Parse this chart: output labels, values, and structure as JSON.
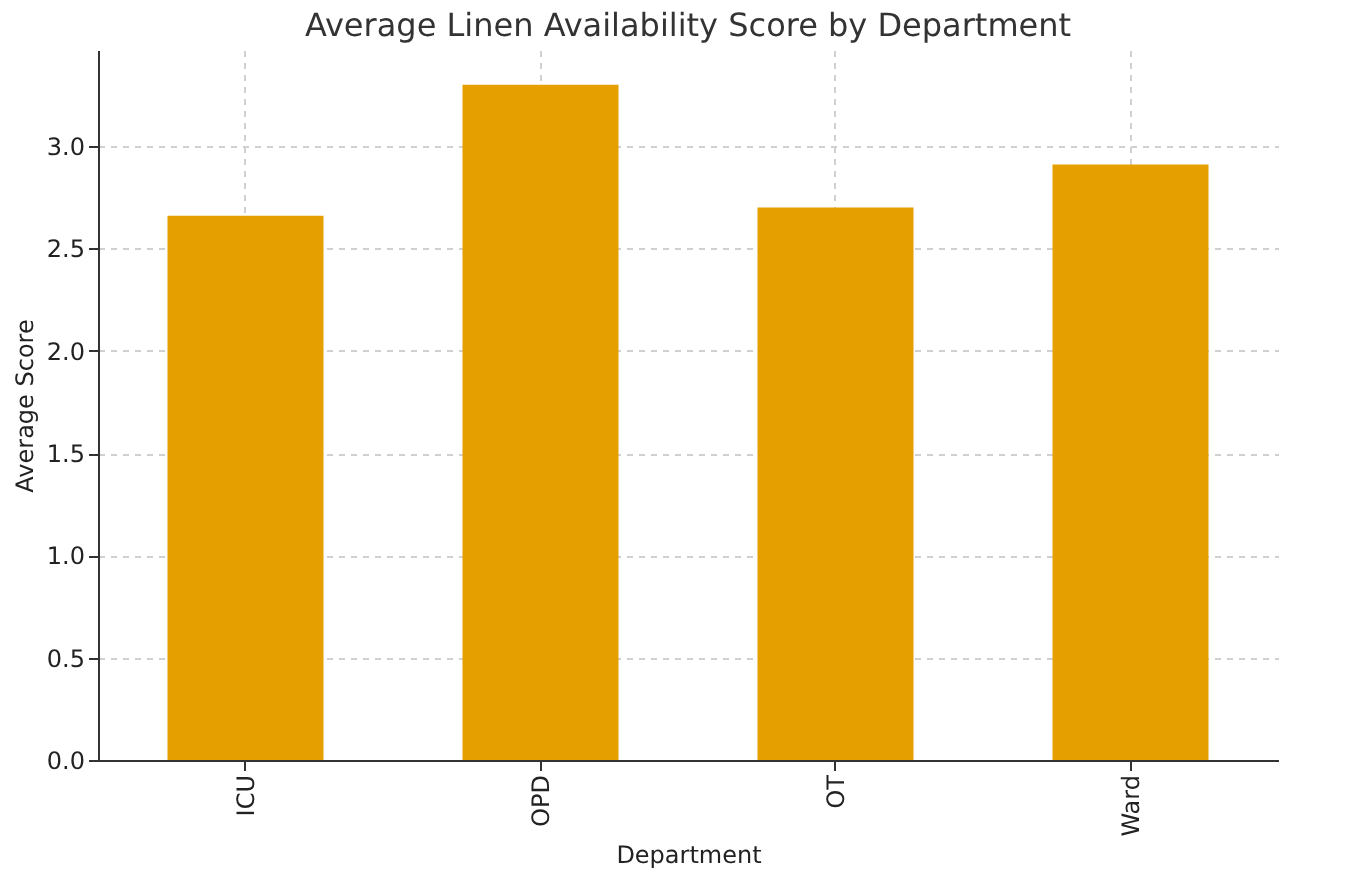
{
  "chart_data": {
    "type": "bar",
    "title": "Average Linen Availability Score by Department",
    "xlabel": "Department",
    "ylabel": "Average Score",
    "categories": [
      "ICU",
      "OPD",
      "OT",
      "Ward"
    ],
    "values": [
      2.66,
      3.3,
      2.7,
      2.91
    ],
    "color": "#e5a000",
    "ylim": [
      0,
      3.47
    ],
    "yticks": [
      {
        "value": 0,
        "label": "0.0"
      },
      0.5,
      {
        "value": 1,
        "label": "1.0"
      },
      1.5,
      {
        "value": 2,
        "label": "2.0"
      },
      2.5,
      {
        "value": 3,
        "label": "3.0"
      }
    ],
    "grid": true
  }
}
